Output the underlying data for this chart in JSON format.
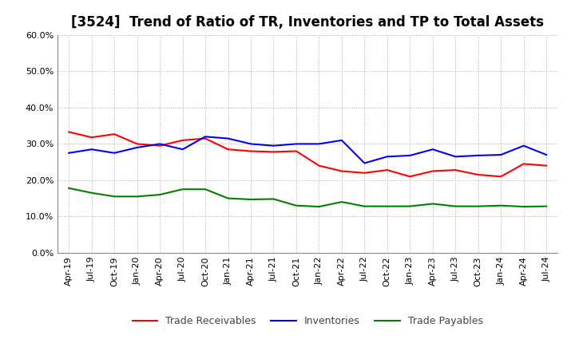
{
  "title": "[3524]  Trend of Ratio of TR, Inventories and TP to Total Assets",
  "x_labels": [
    "Apr-19",
    "Jul-19",
    "Oct-19",
    "Jan-20",
    "Apr-20",
    "Jul-20",
    "Oct-20",
    "Jan-21",
    "Apr-21",
    "Jul-21",
    "Oct-21",
    "Jan-22",
    "Apr-22",
    "Jul-22",
    "Oct-22",
    "Jan-23",
    "Apr-23",
    "Jul-23",
    "Oct-23",
    "Jan-24",
    "Apr-24",
    "Jul-24"
  ],
  "trade_receivables": [
    0.333,
    0.318,
    0.327,
    0.3,
    0.295,
    0.31,
    0.315,
    0.285,
    0.28,
    0.278,
    0.28,
    0.24,
    0.225,
    0.22,
    0.228,
    0.21,
    0.225,
    0.228,
    0.215,
    0.21,
    0.245,
    0.24
  ],
  "inventories": [
    0.275,
    0.285,
    0.275,
    0.29,
    0.3,
    0.285,
    0.32,
    0.315,
    0.3,
    0.295,
    0.3,
    0.3,
    0.31,
    0.247,
    0.265,
    0.268,
    0.285,
    0.265,
    0.268,
    0.27,
    0.295,
    0.27
  ],
  "trade_payables": [
    0.178,
    0.165,
    0.155,
    0.155,
    0.16,
    0.175,
    0.175,
    0.15,
    0.147,
    0.148,
    0.13,
    0.127,
    0.14,
    0.128,
    0.128,
    0.128,
    0.135,
    0.128,
    0.128,
    0.13,
    0.127,
    0.128
  ],
  "line_colors": {
    "trade_receivables": "#FF0000",
    "inventories": "#0000FF",
    "trade_payables": "#008000"
  },
  "ylim": [
    0.0,
    0.6
  ],
  "yticks": [
    0.0,
    0.1,
    0.2,
    0.3,
    0.4,
    0.5,
    0.6
  ],
  "background_color": "#FFFFFF",
  "grid_color": "#AAAAAA",
  "line_width": 1.5,
  "title_fontsize": 12,
  "tick_fontsize": 8,
  "legend_fontsize": 9
}
